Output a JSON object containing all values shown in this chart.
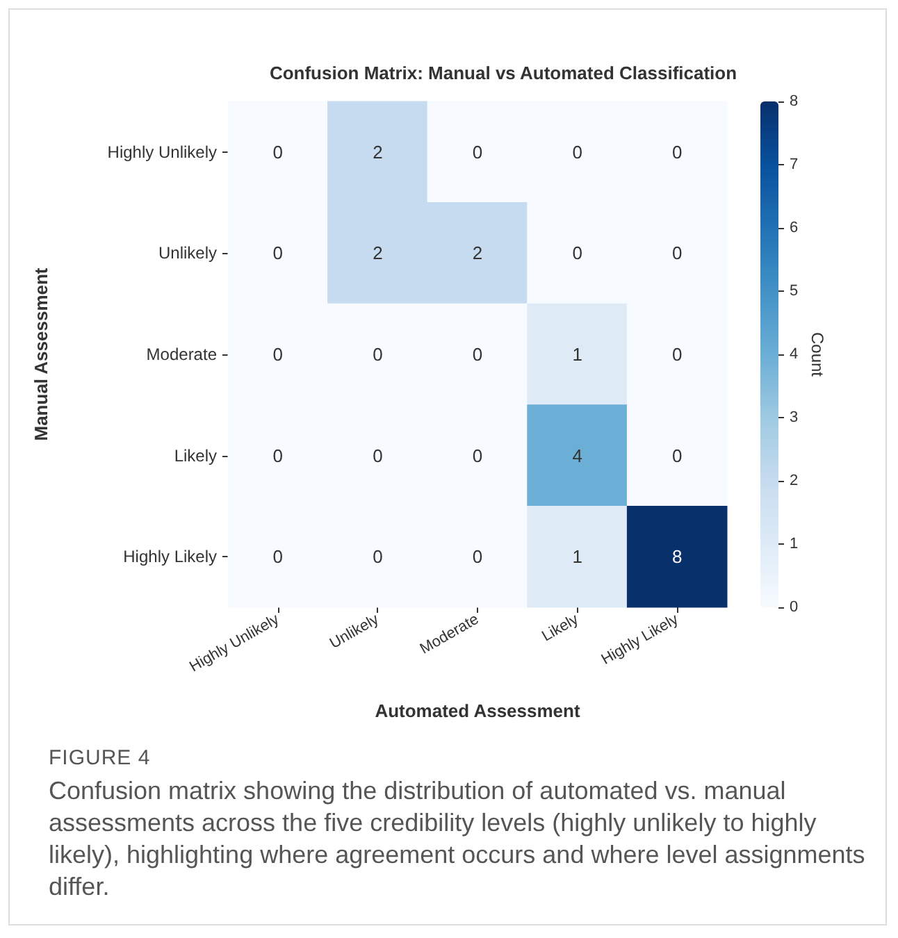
{
  "chart_data": {
    "type": "heatmap",
    "title": "Confusion Matrix: Manual vs Automated Classification",
    "xlabel": "Automated Assessment",
    "ylabel": "Manual Assessment",
    "clabel": "Count",
    "categories": [
      "Highly Unlikely",
      "Unlikely",
      "Moderate",
      "Likely",
      "Highly Likely"
    ],
    "y_categories": [
      "Highly Unlikely",
      "Unlikely",
      "Moderate",
      "Likely",
      "Highly Likely"
    ],
    "cells": [
      [
        0,
        2,
        0,
        0,
        0
      ],
      [
        0,
        2,
        2,
        0,
        0
      ],
      [
        0,
        0,
        0,
        1,
        0
      ],
      [
        0,
        0,
        0,
        4,
        0
      ],
      [
        0,
        0,
        0,
        1,
        8
      ]
    ],
    "clim": [
      0,
      8
    ],
    "cticks": [
      0,
      1,
      2,
      3,
      4,
      5,
      6,
      7,
      8
    ],
    "data_labels": true,
    "annotations": [
      "FIGURE 4",
      "Confusion matrix showing the distribution of automated vs. manual assessments across the five credibility levels (highly unlikely to highly likely), highlighting where agreement occurs and where level assignments differ."
    ]
  }
}
